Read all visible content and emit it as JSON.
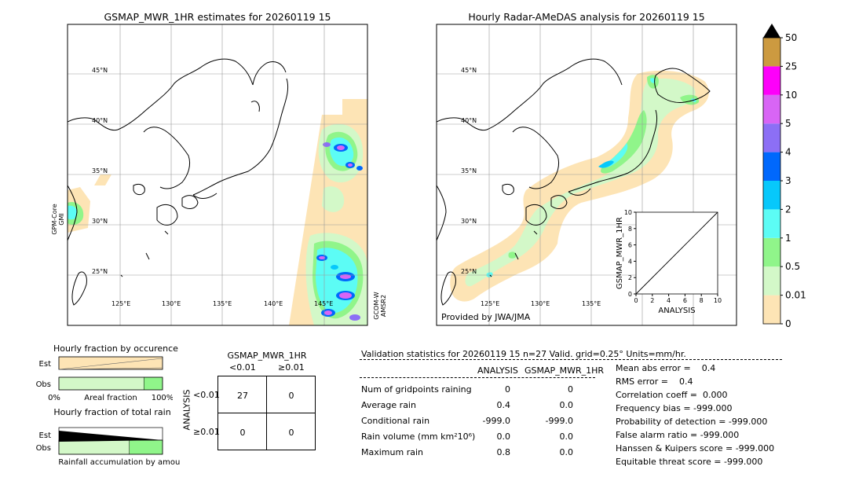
{
  "left_map": {
    "title": "GSMAP_MWR_1HR estimates for 20260119 15",
    "side_label_left": "GPM-Core GMI",
    "side_label_left_lines": [
      "GPM-Core",
      "GMI"
    ],
    "side_label_right_lines": [
      "GCOM-W",
      "AMSR2"
    ],
    "lat_labels": [
      "45°N",
      "40°N",
      "35°N",
      "30°N",
      "25°N"
    ],
    "lon_labels": [
      "125°E",
      "130°E",
      "135°E",
      "140°E",
      "145°E"
    ]
  },
  "right_map": {
    "title": "Hourly Radar-AMeDAS analysis for 20260119 15",
    "credit": "Provided by JWA/JMA",
    "lat_labels": [
      "45°N",
      "40°N",
      "35°N",
      "30°N",
      "25°N"
    ],
    "lon_labels": [
      "125°E",
      "130°E",
      "135°E"
    ]
  },
  "colorbar": {
    "labels": [
      "0",
      "0.01",
      "0.5",
      "1",
      "2",
      "3",
      "4",
      "5",
      "10",
      "25",
      "50"
    ],
    "colors": [
      "#fde4b5",
      "#d3f8c8",
      "#90f58a",
      "#5cfcf5",
      "#07c8fb",
      "#0068fc",
      "#8c6ff5",
      "#d865f5",
      "#fd00fa",
      "#cc9a40"
    ],
    "over_color": "#000000"
  },
  "chart_data": [
    {
      "type": "scatter",
      "title": "",
      "xlabel": "ANALYSIS",
      "ylabel": "GSMAP_MWR_1HR",
      "xlim": [
        0,
        10
      ],
      "ylim": [
        0,
        10
      ],
      "ticks": [
        "0",
        "2",
        "4",
        "6",
        "8",
        "10"
      ],
      "points": [],
      "reference_line": [
        [
          0,
          0
        ],
        [
          10,
          10
        ]
      ]
    },
    {
      "type": "bar",
      "title": "Hourly fraction by occurence",
      "categories": [
        "Est",
        "Obs"
      ],
      "xlabel": "Areal fraction",
      "x_ticks": [
        "0%",
        "100%"
      ],
      "series": [
        {
          "values": [
            1.0,
            0.0
          ],
          "color": "#fde4b5"
        },
        {
          "values": [
            0.0,
            0.82
          ],
          "color": "#d3f8c8"
        },
        {
          "values": [
            0.0,
            0.18
          ],
          "color": "#90f58a"
        }
      ]
    },
    {
      "type": "bar",
      "title": "Hourly fraction of total rain",
      "categories": [
        "Est",
        "Obs"
      ],
      "xlabel": "Rainfall accumulation by amount",
      "series": [
        {
          "values": [
            0.0,
            0.68
          ],
          "color": "#d3f8c8"
        },
        {
          "values": [
            0.0,
            0.32
          ],
          "color": "#90f58a"
        }
      ]
    },
    {
      "type": "table",
      "title": "GSMAP_MWR_1HR",
      "col_headers": [
        "<0.01",
        "≥0.01"
      ],
      "row_title": "ANALYSIS",
      "row_headers": [
        "<0.01",
        "≥0.01"
      ],
      "cells": [
        [
          "27",
          "0"
        ],
        [
          "0",
          "0"
        ]
      ]
    }
  ],
  "validation": {
    "header": "Validation statistics for 20260119 15  n=27 Valid. grid=0.25° Units=mm/hr.",
    "col_analysis": "ANALYSIS",
    "col_gsmap": "GSMAP_MWR_1HR",
    "rows": [
      {
        "label": "Num of gridpoints raining",
        "analysis": "0",
        "gsmap": "0"
      },
      {
        "label": "Average rain",
        "analysis": "0.4",
        "gsmap": "0.0"
      },
      {
        "label": "Conditional rain",
        "analysis": "-999.0",
        "gsmap": "-999.0"
      },
      {
        "label": "Rain volume (mm km²10⁶)",
        "analysis": "0.0",
        "gsmap": "0.0"
      },
      {
        "label": "Maximum rain",
        "analysis": "0.8",
        "gsmap": "0.0"
      }
    ],
    "scores": [
      "Mean abs error =    0.4",
      "RMS error =    0.4",
      "Correlation coeff =  0.000",
      "Frequency bias = -999.000",
      "Probability of detection = -999.000",
      "False alarm ratio = -999.000",
      "Hanssen & Kuipers score = -999.000",
      "Equitable threat score = -999.000"
    ]
  }
}
